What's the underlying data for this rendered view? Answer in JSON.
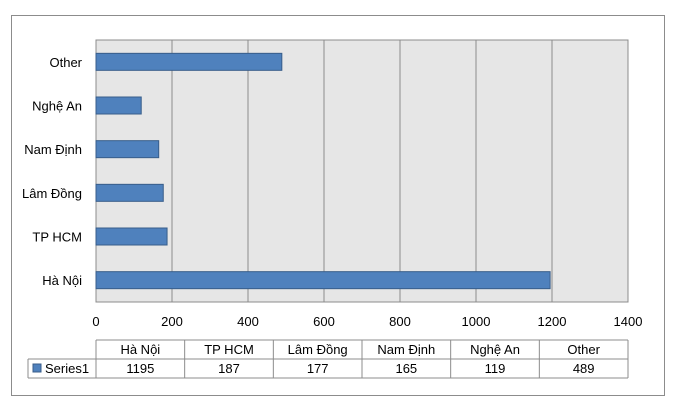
{
  "chart_data": {
    "type": "bar",
    "orientation": "horizontal",
    "categories": [
      "Hà Nội",
      "TP HCM",
      "Lâm Đồng",
      "Nam Định",
      "Nghệ An",
      "Other"
    ],
    "series": [
      {
        "name": "Series1",
        "values": [
          1195,
          187,
          177,
          165,
          119,
          489
        ]
      }
    ],
    "xlim": [
      0,
      1400
    ],
    "xticks": [
      "0",
      "200",
      "400",
      "600",
      "800",
      "1000",
      "1200",
      "1400"
    ],
    "grid": "vertical",
    "legend": "data-table-left",
    "colors": {
      "bar": "#4f81bd",
      "bar_border": "#385d8a",
      "plot_bg": "#e6e6e6",
      "grid": "#8c8c8c"
    }
  }
}
